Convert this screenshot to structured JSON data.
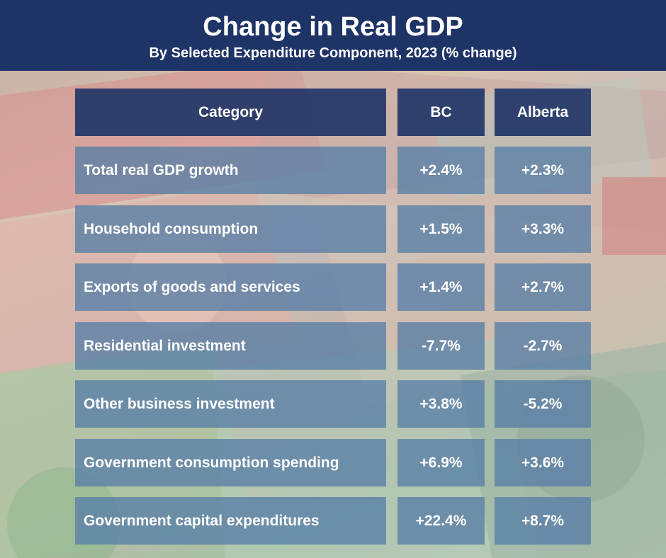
{
  "chart_data": {
    "type": "table",
    "title": "Change in Real GDP",
    "subtitle": "By Selected Expenditure Component, 2023 (% change)",
    "columns": [
      "Category",
      "BC",
      "Alberta"
    ],
    "rows": [
      {
        "category": "Total real GDP growth",
        "bc": "+2.4%",
        "alberta": "+2.3%"
      },
      {
        "category": "Household consumption",
        "bc": "+1.5%",
        "alberta": "+3.3%"
      },
      {
        "category": "Exports of goods and services",
        "bc": "+1.4%",
        "alberta": "+2.7%"
      },
      {
        "category": "Residential investment",
        "bc": "-7.7%",
        "alberta": "-2.7%"
      },
      {
        "category": "Other business investment",
        "bc": "+3.8%",
        "alberta": "-5.2%"
      },
      {
        "category": "Government consumption spending",
        "bc": "+6.9%",
        "alberta": "+3.6%"
      },
      {
        "category": "Government capital expenditures",
        "bc": "+22.4%",
        "alberta": "+8.7%"
      }
    ]
  },
  "colors": {
    "header_bg": "#1e3366",
    "row_bg": "#5a80a6",
    "text": "#ffffff"
  },
  "background_image": "canadian-banknotes-photo"
}
